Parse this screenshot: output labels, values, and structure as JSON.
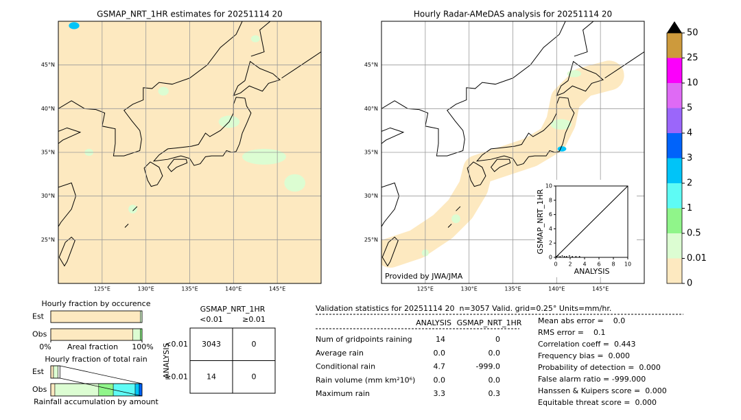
{
  "maps": [
    {
      "title": "GSMAP_NRT_1HR estimates for 20251114 20",
      "xlim": [
        120,
        150
      ],
      "ylim": [
        20,
        50
      ],
      "xticks": [
        {
          "value": 125,
          "label": "125°E"
        },
        {
          "value": 130,
          "label": "130°E"
        },
        {
          "value": 135,
          "label": "135°E"
        },
        {
          "value": 140,
          "label": "140°E"
        },
        {
          "value": 145,
          "label": "145°E"
        }
      ],
      "yticks": [
        {
          "value": 25,
          "label": "25°N"
        },
        {
          "value": 30,
          "label": "30°N"
        },
        {
          "value": 35,
          "label": "35°N"
        },
        {
          "value": 40,
          "label": "40°N"
        },
        {
          "value": 45,
          "label": "45°N"
        }
      ]
    },
    {
      "title": "Hourly Radar-AMeDAS analysis for 20251114 20",
      "note": "Provided by JWA/JMA",
      "xlim": [
        120,
        150
      ],
      "ylim": [
        20,
        50
      ],
      "xticks": [
        {
          "value": 125,
          "label": "125°E"
        },
        {
          "value": 130,
          "label": "130°E"
        },
        {
          "value": 135,
          "label": "135°E"
        },
        {
          "value": 140,
          "label": "140°E"
        },
        {
          "value": 145,
          "label": "145°E"
        }
      ],
      "yticks": [
        {
          "value": 25,
          "label": "25°N"
        },
        {
          "value": 30,
          "label": "30°N"
        },
        {
          "value": 35,
          "label": "35°N"
        },
        {
          "value": 40,
          "label": "40°N"
        },
        {
          "value": 45,
          "label": "45°N"
        }
      ]
    }
  ],
  "colorbar": {
    "levels": [
      0,
      0.01,
      0.5,
      1,
      2,
      3,
      4,
      5,
      10,
      25,
      50
    ],
    "colors": [
      "#fde9c0",
      "#dcfdd2",
      "#90f58a",
      "#5efbf5",
      "#00c4f8",
      "#0063fa",
      "#9b66fa",
      "#df6af5",
      "#fb00fb",
      "#cd9a3c"
    ]
  },
  "scatter": {
    "xlabel": "ANALYSIS",
    "ylabel": "GSMAP_NRT_1HR",
    "xlim": [
      0,
      10
    ],
    "ylim": [
      0,
      10
    ],
    "xticks": [
      0,
      2,
      4,
      6,
      8,
      10
    ],
    "yticks": [
      0,
      2,
      4,
      6,
      8,
      10
    ],
    "x": [
      0.1,
      0.3,
      0.6,
      0.9,
      1.2,
      1.5,
      1.9,
      2.3,
      2.8,
      3.3
    ],
    "y": [
      0.1,
      0.2,
      0.1,
      0.2,
      0.1,
      0.1,
      0.2,
      0.1,
      0.1,
      0.1
    ]
  },
  "occurrence": {
    "title": "Hourly fraction by occurence",
    "rows": [
      "Est",
      "Obs"
    ],
    "xlabel": "Areal fraction",
    "xticks": [
      {
        "value": 0,
        "label": "0%"
      },
      {
        "value": 100,
        "label": "100%"
      }
    ],
    "series": [
      {
        "segments": [
          {
            "value": 98,
            "color": "#fde9c0"
          },
          {
            "value": 2,
            "color": "#dcfdd2"
          }
        ]
      },
      {
        "segments": [
          {
            "value": 90,
            "color": "#fde9c0"
          },
          {
            "value": 8,
            "color": "#dcfdd2"
          },
          {
            "value": 2,
            "color": "#90f58a"
          }
        ]
      }
    ]
  },
  "total": {
    "title": "Hourly fraction of total rain",
    "rows": [
      "Est",
      "Obs"
    ],
    "xlabel": "Rainfall accumulation by amount",
    "series": [
      {
        "segments": [
          {
            "value": 3,
            "color": "#fde9c0"
          },
          {
            "value": 5,
            "color": "#dcfdd2"
          },
          {
            "value": 2,
            "color": "#ffffff"
          }
        ]
      },
      {
        "segments": [
          {
            "value": 4.5,
            "color": "#fde9c0"
          },
          {
            "value": 48,
            "color": "#dcfdd2"
          },
          {
            "value": 16,
            "color": "#90f58a"
          },
          {
            "value": 24,
            "color": "#5efbf5"
          },
          {
            "value": 4.5,
            "color": "#00c4f8"
          },
          {
            "value": 3,
            "color": "#0063fa"
          }
        ]
      }
    ]
  },
  "contingency": {
    "title": "GSMAP_NRT_1HR",
    "columns": [
      "<0.01",
      "≥0.01"
    ],
    "ylabel": "ANALYSIS",
    "rows": [
      "<0.01",
      "≥0.01"
    ],
    "cells": [
      [
        3043,
        0
      ],
      [
        14,
        0
      ]
    ]
  },
  "stats": {
    "header": "Validation statistics for 20251114 20  n=3057 Valid. grid=0.25° Units=mm/hr.",
    "columns": [
      "ANALYSIS",
      "GSMAP_NRT_1HR"
    ],
    "rows": [
      {
        "label": "Num of gridpoints raining",
        "values": [
          "14",
          "0"
        ]
      },
      {
        "label": "Average rain",
        "values": [
          "0.0",
          "0.0"
        ]
      },
      {
        "label": "Conditional rain",
        "values": [
          "4.7",
          "-999.0"
        ]
      },
      {
        "label": "Rain volume (mm km²10⁶)",
        "values": [
          "0.0",
          "0.0"
        ]
      },
      {
        "label": "Maximum rain",
        "values": [
          "3.3",
          "0.3"
        ]
      }
    ],
    "scores": [
      "Mean abs error =    0.0",
      "RMS error =    0.1",
      "Correlation coeff =  0.443",
      "Frequency bias =  0.000",
      "Probability of detection =  0.000",
      "False alarm ratio = -999.000",
      "Hanssen & Kuipers score =  0.000",
      "Equitable threat score =  0.000"
    ]
  }
}
